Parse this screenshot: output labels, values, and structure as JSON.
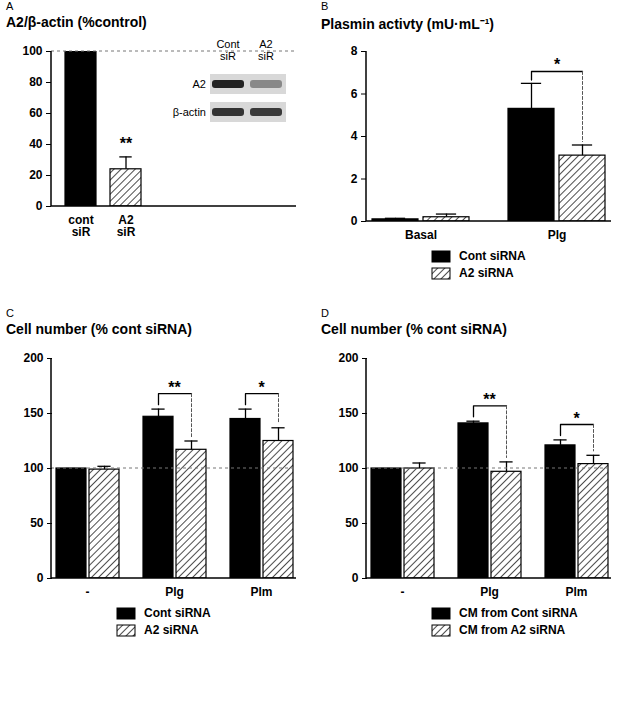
{
  "chart_data": [
    {
      "panel_label": "A",
      "type": "bar",
      "title": "A2/β-actin (%control)",
      "categories": [
        "cont siR",
        "A2 siR"
      ],
      "values": [
        100,
        24
      ],
      "errors": [
        0,
        8
      ],
      "colors": [
        "#000000",
        "#000000"
      ],
      "ylim": [
        0,
        100
      ],
      "yticks": [
        0,
        20,
        40,
        60,
        80,
        100
      ],
      "reference_line": 100,
      "annotations": [
        {
          "category": "A2 siR",
          "label": "**"
        }
      ],
      "inset": {
        "columns": [
          "Cont siR",
          "A2 siR"
        ],
        "rows": [
          "A2",
          "β-actin"
        ]
      }
    },
    {
      "panel_label": "B",
      "type": "bar",
      "title": "Plasmin activty (mU·mL⁻¹)",
      "categories": [
        "Basal",
        "Plg"
      ],
      "series": [
        {
          "name": "Cont siRNA",
          "color": "#000000",
          "values": [
            0.1,
            5.3
          ],
          "errors": [
            0.05,
            1.2
          ]
        },
        {
          "name": "A2 siRNA",
          "color": "#000000",
          "values": [
            0.2,
            3.1
          ],
          "errors": [
            0.15,
            0.5
          ]
        }
      ],
      "ylim": [
        0,
        8
      ],
      "yticks": [
        0,
        2,
        4,
        6,
        8
      ],
      "annotations": [
        {
          "category": "Plg",
          "label": "*"
        }
      ],
      "legend": "bottom"
    },
    {
      "panel_label": "C",
      "type": "bar",
      "title": "Cell number (% cont siRNA)",
      "categories": [
        "-",
        "Plg",
        "Plm"
      ],
      "series": [
        {
          "name": "Cont siRNA",
          "color": "#000000",
          "values": [
            100,
            147,
            145
          ],
          "errors": [
            0,
            7,
            9
          ]
        },
        {
          "name": "A2 siRNA",
          "color": "#000000",
          "values": [
            99,
            117,
            125
          ],
          "errors": [
            3,
            8,
            12
          ]
        }
      ],
      "ylim": [
        0,
        200
      ],
      "yticks": [
        0,
        50,
        100,
        150,
        200
      ],
      "reference_line": 100,
      "annotations": [
        {
          "category": "Plg",
          "label": "**"
        },
        {
          "category": "Plm",
          "label": "*"
        }
      ],
      "legend": "bottom"
    },
    {
      "panel_label": "D",
      "type": "bar",
      "title": "Cell number (% cont siRNA)",
      "categories": [
        "-",
        "Plg",
        "Plm"
      ],
      "series": [
        {
          "name": "CM from Cont siRNA",
          "color": "#000000",
          "values": [
            100,
            141,
            121
          ],
          "errors": [
            0,
            2,
            5
          ]
        },
        {
          "name": "CM from A2 siRNA",
          "color": "#000000",
          "values": [
            100,
            97,
            104
          ],
          "errors": [
            5,
            9,
            8
          ]
        }
      ],
      "ylim": [
        0,
        200
      ],
      "yticks": [
        0,
        50,
        100,
        150,
        200
      ],
      "reference_line": 100,
      "annotations": [
        {
          "category": "Plg",
          "label": "**"
        },
        {
          "category": "Plm",
          "label": "*"
        }
      ],
      "legend": "bottom"
    }
  ]
}
